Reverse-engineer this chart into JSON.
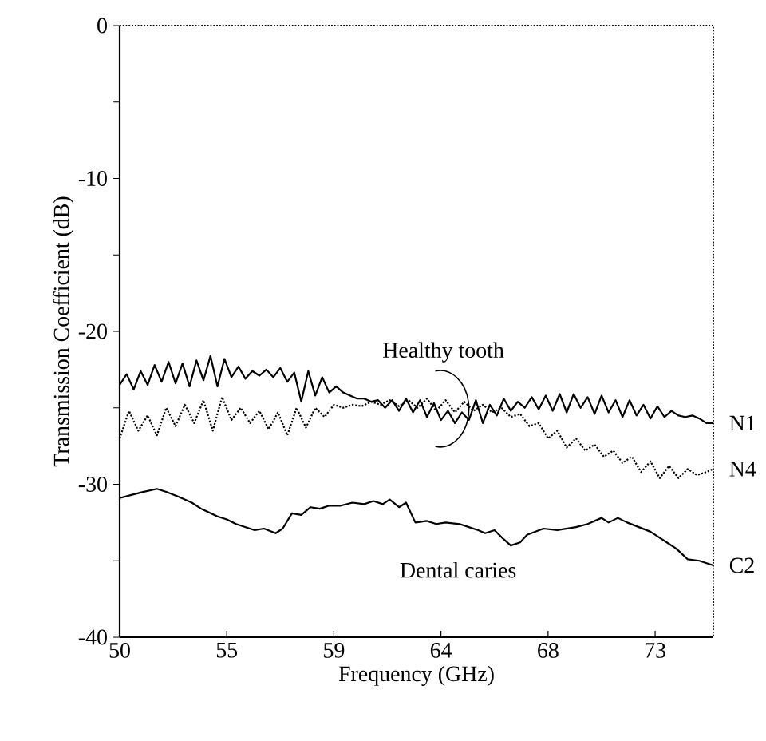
{
  "chart_data": {
    "type": "line",
    "xlabel": "Frequency (GHz)",
    "ylabel": "Transmission Coefficient (dB)",
    "xlim": [
      50,
      75.5
    ],
    "ylim": [
      -40,
      0
    ],
    "xticks": [
      50,
      {
        "value": 54.6,
        "label": "55"
      },
      {
        "value": 59.2,
        "label": "59"
      },
      {
        "value": 63.8,
        "label": "64"
      },
      {
        "value": 68.4,
        "label": "68"
      },
      {
        "value": 73,
        "label": "73"
      }
    ],
    "yticks": [
      -40,
      {
        "value": -35,
        "label": null
      },
      -30,
      {
        "value": -25,
        "label": null
      },
      -20,
      {
        "value": -15,
        "label": null
      },
      -10,
      {
        "value": -5,
        "label": null
      },
      0
    ],
    "annotations": [
      {
        "text": "Healthy tooth",
        "x": 63.9,
        "y": -25.1
      },
      "Dental caries"
    ],
    "series": [
      {
        "name": "N1",
        "color": "#000000",
        "line_style": "solid",
        "x": [
          50.0,
          50.3,
          50.6,
          50.9,
          51.2,
          51.5,
          51.8,
          52.1,
          52.4,
          52.7,
          53.0,
          53.3,
          53.6,
          53.9,
          54.2,
          54.5,
          54.8,
          55.1,
          55.4,
          55.7,
          56.0,
          56.3,
          56.6,
          56.9,
          57.2,
          57.5,
          57.8,
          58.1,
          58.4,
          58.7,
          59.0,
          59.3,
          59.6,
          59.9,
          60.2,
          60.5,
          60.8,
          61.1,
          61.4,
          61.7,
          62.0,
          62.3,
          62.6,
          62.9,
          63.2,
          63.5,
          63.8,
          64.1,
          64.4,
          64.7,
          65.0,
          65.3,
          65.6,
          65.9,
          66.2,
          66.5,
          66.8,
          67.1,
          67.4,
          67.7,
          68.0,
          68.3,
          68.6,
          68.9,
          69.2,
          69.5,
          69.8,
          70.1,
          70.4,
          70.7,
          71.0,
          71.3,
          71.6,
          71.9,
          72.2,
          72.5,
          72.8,
          73.1,
          73.4,
          73.7,
          74.0,
          74.3,
          74.6,
          74.9,
          75.2,
          75.5
        ],
        "values": [
          -23.5,
          -22.8,
          -23.8,
          -22.6,
          -23.5,
          -22.2,
          -23.3,
          -22.0,
          -23.4,
          -22.1,
          -23.6,
          -21.9,
          -23.2,
          -21.6,
          -23.6,
          -21.8,
          -23.0,
          -22.3,
          -23.1,
          -22.6,
          -22.9,
          -22.5,
          -23.0,
          -22.4,
          -23.3,
          -22.7,
          -24.6,
          -22.6,
          -24.2,
          -23.0,
          -24.0,
          -23.6,
          -24.0,
          -24.2,
          -24.4,
          -24.4,
          -24.6,
          -24.5,
          -25.0,
          -24.5,
          -25.2,
          -24.4,
          -25.3,
          -24.5,
          -25.6,
          -24.7,
          -25.8,
          -25.2,
          -26.0,
          -25.3,
          -25.8,
          -24.5,
          -26.0,
          -24.8,
          -25.5,
          -24.4,
          -25.2,
          -24.6,
          -25.0,
          -24.3,
          -25.1,
          -24.2,
          -25.2,
          -24.1,
          -25.3,
          -24.1,
          -25.0,
          -24.3,
          -25.4,
          -24.2,
          -25.3,
          -24.5,
          -25.6,
          -24.5,
          -25.5,
          -24.8,
          -25.7,
          -24.9,
          -25.6,
          -25.2,
          -25.5,
          -25.6,
          -25.5,
          -25.7,
          -26.0,
          -26.0
        ]
      },
      {
        "name": "N4",
        "color": "#000000",
        "line_style": "dotted",
        "x": [
          50.0,
          50.4,
          50.8,
          51.2,
          51.6,
          52.0,
          52.4,
          52.8,
          53.2,
          53.6,
          54.0,
          54.4,
          54.8,
          55.2,
          55.6,
          56.0,
          56.4,
          56.8,
          57.2,
          57.6,
          58.0,
          58.4,
          58.8,
          59.2,
          59.6,
          60.0,
          60.4,
          60.8,
          61.2,
          61.6,
          62.0,
          62.4,
          62.8,
          63.2,
          63.6,
          64.0,
          64.4,
          64.8,
          65.2,
          65.6,
          66.0,
          66.4,
          66.8,
          67.2,
          67.6,
          68.0,
          68.4,
          68.8,
          69.2,
          69.6,
          70.0,
          70.4,
          70.8,
          71.2,
          71.6,
          72.0,
          72.4,
          72.8,
          73.2,
          73.6,
          74.0,
          74.4,
          74.8,
          75.2,
          75.5
        ],
        "values": [
          -27.0,
          -25.2,
          -26.5,
          -25.5,
          -26.8,
          -25.0,
          -26.2,
          -24.8,
          -26.0,
          -24.5,
          -26.5,
          -24.3,
          -25.8,
          -25.0,
          -26.0,
          -25.2,
          -26.4,
          -25.3,
          -26.8,
          -25.0,
          -26.3,
          -25.0,
          -25.6,
          -24.8,
          -25.0,
          -24.8,
          -24.9,
          -24.6,
          -24.8,
          -24.5,
          -24.9,
          -24.5,
          -25.0,
          -24.4,
          -25.2,
          -24.5,
          -25.3,
          -24.6,
          -25.2,
          -24.8,
          -25.3,
          -25.0,
          -25.6,
          -25.4,
          -26.2,
          -26.0,
          -27.0,
          -26.5,
          -27.6,
          -27.0,
          -27.8,
          -27.4,
          -28.2,
          -27.8,
          -28.6,
          -28.2,
          -29.2,
          -28.5,
          -29.6,
          -28.8,
          -29.6,
          -29.0,
          -29.4,
          -29.2,
          -29.0
        ]
      },
      {
        "name": "C2",
        "color": "#000000",
        "line_style": "solid",
        "x": [
          50.0,
          50.5,
          51.0,
          51.6,
          52.0,
          52.5,
          53.1,
          53.5,
          54.2,
          54.6,
          55.0,
          55.4,
          55.8,
          56.2,
          56.7,
          57.0,
          57.4,
          57.8,
          58.2,
          58.6,
          59.0,
          59.5,
          60.0,
          60.5,
          60.9,
          61.3,
          61.6,
          62.0,
          62.3,
          62.7,
          63.2,
          63.6,
          64.0,
          64.6,
          65.0,
          65.4,
          65.7,
          66.1,
          66.5,
          66.8,
          67.2,
          67.5,
          68.2,
          68.8,
          69.2,
          69.6,
          70.1,
          70.7,
          71.0,
          71.4,
          71.8,
          72.3,
          72.8,
          73.1,
          73.5,
          73.9,
          74.4,
          74.9,
          75.5
        ],
        "values": [
          -30.9,
          -30.7,
          -30.5,
          -30.3,
          -30.5,
          -30.8,
          -31.2,
          -31.6,
          -32.1,
          -32.3,
          -32.6,
          -32.8,
          -33.0,
          -32.9,
          -33.2,
          -32.9,
          -31.9,
          -32.0,
          -31.5,
          -31.6,
          -31.4,
          -31.4,
          -31.2,
          -31.3,
          -31.1,
          -31.3,
          -31.0,
          -31.5,
          -31.2,
          -32.5,
          -32.4,
          -32.6,
          -32.5,
          -32.6,
          -32.8,
          -33.0,
          -33.2,
          -33.0,
          -33.6,
          -34.0,
          -33.8,
          -33.3,
          -32.9,
          -33.0,
          -32.9,
          -32.8,
          -32.6,
          -32.2,
          -32.5,
          -32.2,
          -32.5,
          -32.8,
          -33.1,
          -33.4,
          -33.8,
          -34.2,
          -34.9,
          -35.0,
          -35.3
        ]
      }
    ]
  }
}
